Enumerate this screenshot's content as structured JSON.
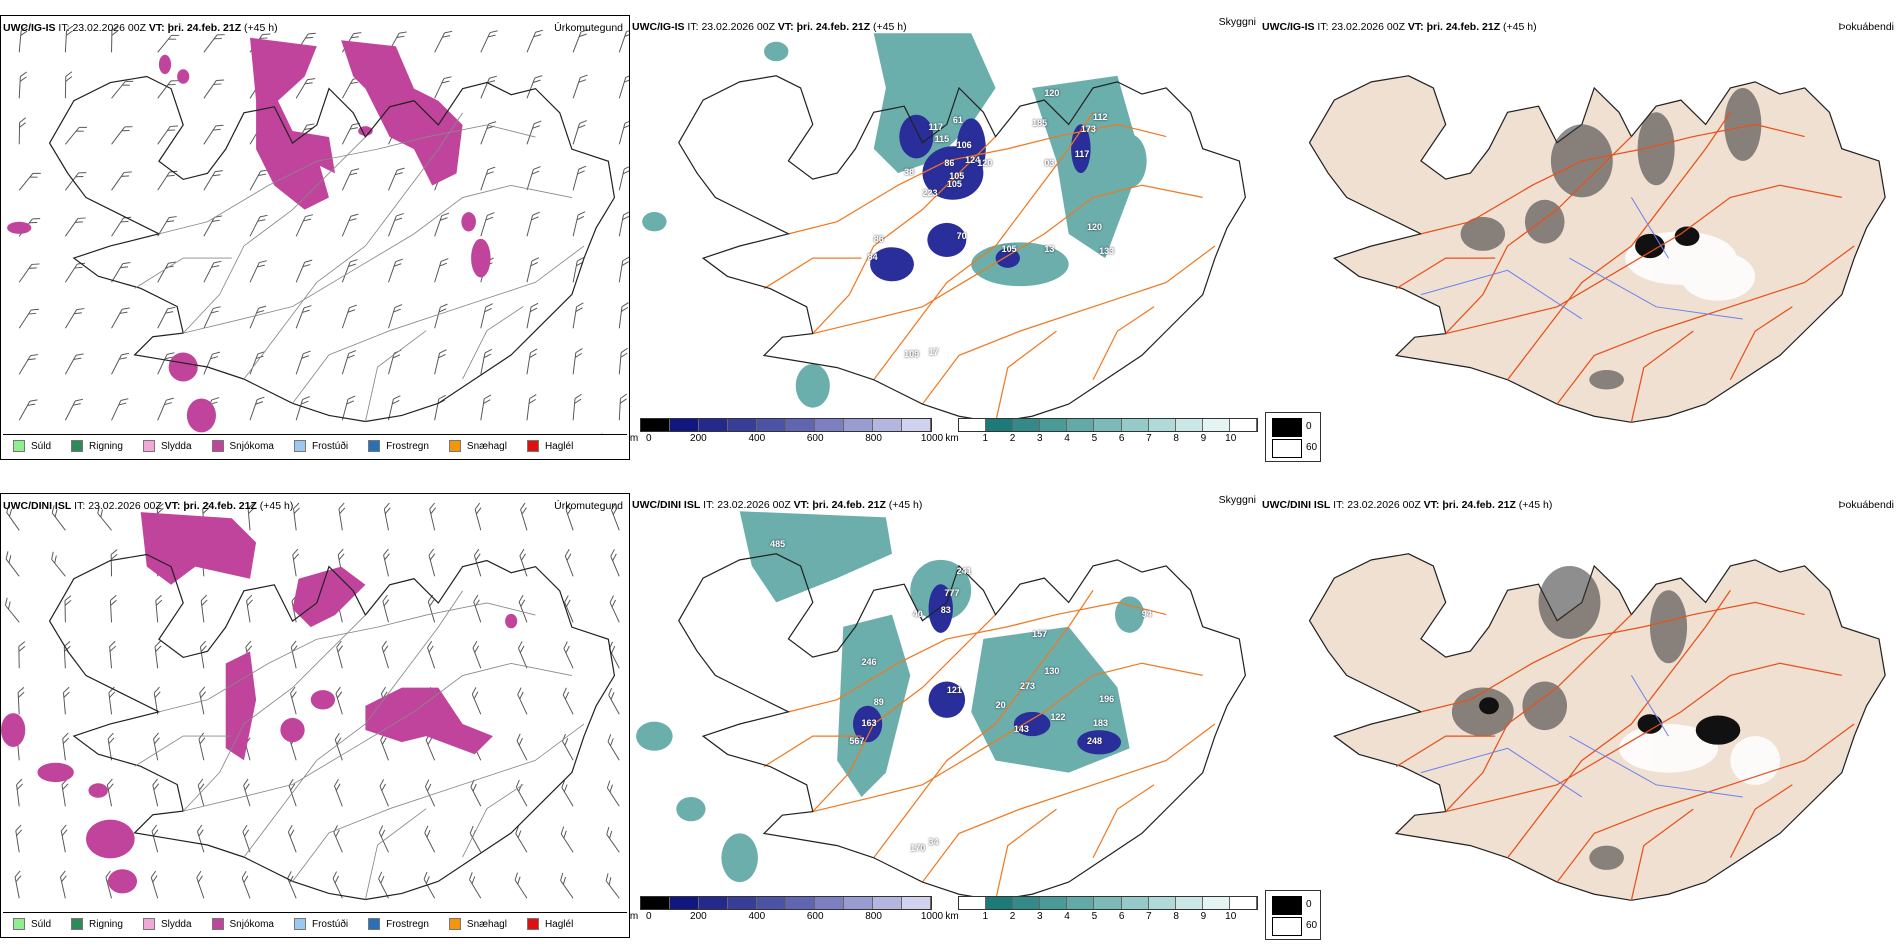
{
  "panels": {
    "precip_top": {
      "model": "UWC/IG-IS",
      "it_label": "IT:",
      "it": "23.02.2026 00Z",
      "vt_label": "VT:",
      "vt": "þri. 24.feb. 21Z",
      "lead": "(+45 h)",
      "title": "Úrkomutegund"
    },
    "sky_top": {
      "model": "UWC/IG-IS",
      "it_label": "IT:",
      "it": "23.02.2026 00Z",
      "vt_label": "VT:",
      "vt": "þri. 24.feb. 21Z",
      "lead": "(+45 h)",
      "title": "Skyggni"
    },
    "fog_top": {
      "model": "UWC/IG-IS",
      "it_label": "IT:",
      "it": "23.02.2026 00Z",
      "vt_label": "VT:",
      "vt": "þri. 24.feb. 21Z",
      "lead": "(+45 h)",
      "title": "Þokuábendi"
    },
    "precip_bottom": {
      "model": "UWC/DINI ISL",
      "it_label": "IT:",
      "it": "23.02.2026 00Z",
      "vt_label": "VT:",
      "vt": "þri. 24.feb. 21Z",
      "lead": "(+45 h)",
      "title": "Úrkomutegund"
    },
    "sky_bottom": {
      "model": "UWC/DINI ISL",
      "it_label": "IT:",
      "it": "23.02.2026 00Z",
      "vt_label": "VT:",
      "vt": "þri. 24.feb. 21Z",
      "lead": "(+45 h)",
      "title": "Skyggni"
    },
    "fog_bottom": {
      "model": "UWC/DINI ISL",
      "it_label": "IT:",
      "it": "23.02.2026 00Z",
      "vt_label": "VT:",
      "vt": "þri. 24.feb. 21Z",
      "lead": "(+45 h)",
      "title": "Þokuábendi"
    }
  },
  "precip_legend": [
    {
      "label": "Súld",
      "color": "#90ee90"
    },
    {
      "label": "Rigning",
      "color": "#2e8b57"
    },
    {
      "label": "Slydda",
      "color": "#f0a8d8"
    },
    {
      "label": "Snjókoma",
      "color": "#c0449c"
    },
    {
      "label": "Frostúði",
      "color": "#9cc8f0"
    },
    {
      "label": "Frostregn",
      "color": "#2a70b8"
    },
    {
      "label": "Snæhagl",
      "color": "#f5960a"
    },
    {
      "label": "Haglél",
      "color": "#e01010"
    }
  ],
  "ceiling_bar": {
    "unit": "m",
    "ticks": [
      "0",
      "200",
      "400",
      "600",
      "800",
      "1000"
    ],
    "colors": [
      "#000000",
      "#101880",
      "#242a8c",
      "#383e98",
      "#4c52a4",
      "#6066b0",
      "#7c80c0",
      "#989cd0",
      "#b4b6e0",
      "#d0d2f0"
    ]
  },
  "vis_bar": {
    "unit": "km",
    "ticks": [
      "1",
      "2",
      "3",
      "4",
      "5",
      "6",
      "7",
      "8",
      "9",
      "10"
    ],
    "colors": [
      "#ffffff",
      "#1e7a78",
      "#348a88",
      "#4a9a98",
      "#62aaa8",
      "#7cbab8",
      "#96cac8",
      "#b0dad8",
      "#cae8e6",
      "#e4f4f2",
      "#ffffff"
    ]
  },
  "fog_legend": {
    "min": "0",
    "max": "60"
  },
  "sky_labels_top": [
    "117",
    "61",
    "115",
    "106",
    "86",
    "124",
    "105",
    "120",
    "105",
    "223",
    "38",
    "70",
    "86",
    "84",
    "105",
    "13",
    "120",
    "133",
    "173",
    "117",
    "03",
    "112",
    "185",
    "120",
    "109",
    "17"
  ],
  "sky_labels_bottom": [
    "485",
    "241",
    "777",
    "40",
    "83",
    "246",
    "89",
    "163",
    "567",
    "121",
    "157",
    "130",
    "273",
    "20",
    "143",
    "122",
    "248",
    "183",
    "196",
    "94",
    "170",
    "34"
  ],
  "colors": {
    "roads": "#f07820",
    "snow": "#c0449c",
    "rain": "#2e8b57",
    "teal": "#3a9490",
    "navy": "#2a2e9a",
    "land": "#efe0d2"
  }
}
